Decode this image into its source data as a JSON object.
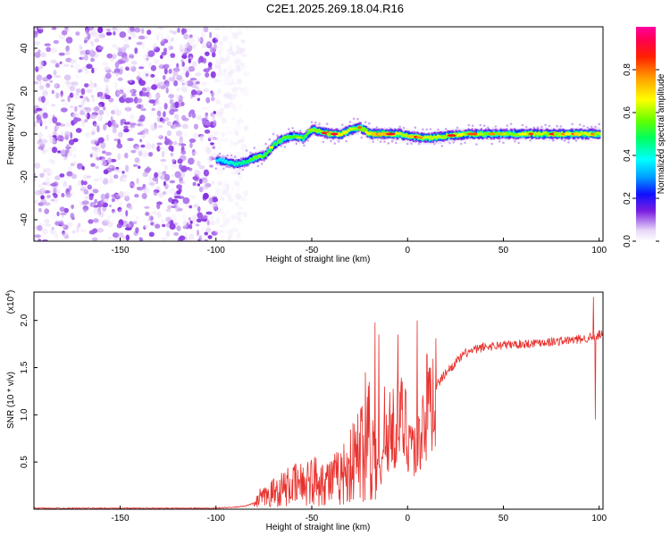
{
  "title": "C2E1.2025.269.18.04.R16",
  "colors": {
    "trace": "#e8322e",
    "noise": "#8a2be2",
    "axis": "#000000",
    "cmap": [
      "#ffffff",
      "#e8d8f8",
      "#7b1ee0",
      "#1010ff",
      "#00a0ff",
      "#00ffff",
      "#00ff60",
      "#60ff00",
      "#ffff00",
      "#ffa000",
      "#ff2000",
      "#ff0050",
      "#ff00a0"
    ]
  },
  "chart_data": [
    {
      "type": "heatmap",
      "name": "spectrogram",
      "xlabel": "Height of straight line (km)",
      "ylabel": "Frequency (Hz)",
      "xlim": [
        -195,
        102
      ],
      "ylim": [
        -50,
        50
      ],
      "xticks": [
        "-150",
        "-100",
        "-50",
        "0",
        "50",
        "100"
      ],
      "xtick_values": [
        -150,
        -100,
        -50,
        0,
        50,
        100
      ],
      "yticks": [
        "-40",
        "-20",
        "0",
        "20",
        "40"
      ],
      "ytick_values": [
        -40,
        -20,
        0,
        20,
        40
      ],
      "noise_region_x": [
        -195,
        -88
      ],
      "ridge": {
        "x": [
          -100,
          -95,
          -90,
          -85,
          -80,
          -75,
          -70,
          -65,
          -60,
          -55,
          -50,
          -45,
          -40,
          -35,
          -30,
          -25,
          -20,
          -15,
          -10,
          -5,
          0,
          10,
          20,
          30,
          40,
          50,
          60,
          70,
          80,
          90,
          100
        ],
        "freq": [
          -12,
          -13,
          -14,
          -13,
          -11,
          -10,
          -5,
          -2,
          -1,
          -2,
          2,
          1,
          0,
          0,
          2,
          3,
          0,
          0,
          0,
          0,
          -1,
          -2,
          -1,
          0,
          0,
          0,
          0,
          0,
          0,
          0,
          0
        ],
        "amplitude": [
          0.15,
          0.2,
          0.3,
          0.35,
          0.6,
          0.5,
          0.45,
          0.55,
          0.5,
          0.5,
          0.6,
          0.65,
          0.75,
          0.8,
          0.7,
          0.6,
          0.85,
          0.9,
          0.8,
          0.7,
          0.65,
          0.7,
          0.7,
          0.65,
          0.6,
          0.6,
          0.65,
          0.7,
          0.7,
          0.75,
          0.7
        ]
      },
      "colorbar": {
        "label": "Normalized spectral amplitude",
        "range": [
          0,
          1
        ],
        "ticks": [
          "0.0",
          "0.2",
          "0.4",
          "0.6",
          "0.8"
        ],
        "tick_values": [
          0.0,
          0.2,
          0.4,
          0.6,
          0.8
        ]
      }
    },
    {
      "type": "line",
      "name": "snr",
      "xlabel": "Height of straight line (km)",
      "ylabel": "SNR (10 * v/v)",
      "scale_label": "(x10",
      "scale_exp": "4",
      "scale_close": ")",
      "xlim": [
        -195,
        102
      ],
      "ylim": [
        0,
        2.3
      ],
      "xticks": [
        "-150",
        "-100",
        "-50",
        "0",
        "50",
        "100"
      ],
      "xtick_values": [
        -150,
        -100,
        -50,
        0,
        50,
        100
      ],
      "yticks": [
        "0.5",
        "1.0",
        "1.5",
        "2.0"
      ],
      "ytick_values": [
        0.5,
        1.0,
        1.5,
        2.0
      ],
      "envelope": {
        "x": [
          -195,
          -100,
          -85,
          -78,
          -75,
          -70,
          -65,
          -60,
          -55,
          -50,
          -45,
          -40,
          -35,
          -30,
          -25,
          -22,
          -20,
          -18,
          -16,
          -14,
          -12,
          -10,
          -8,
          -6,
          -4,
          -2,
          0,
          2,
          4,
          5,
          6,
          8,
          10,
          15,
          20,
          25,
          30,
          40,
          50,
          60,
          70,
          80,
          90,
          95,
          98,
          100,
          102
        ],
        "y": [
          0.01,
          0.01,
          0.03,
          0.08,
          0.12,
          0.18,
          0.22,
          0.25,
          0.27,
          0.3,
          0.32,
          0.3,
          0.35,
          0.45,
          0.6,
          0.75,
          0.85,
          0.6,
          0.45,
          0.3,
          0.75,
          0.8,
          0.85,
          0.9,
          0.95,
          0.9,
          0.85,
          0.75,
          0.6,
          0.55,
          0.7,
          0.95,
          1.05,
          1.3,
          1.45,
          1.55,
          1.65,
          1.72,
          1.74,
          1.75,
          1.77,
          1.78,
          1.8,
          1.82,
          1.8,
          1.85,
          1.85
        ]
      },
      "spikes": [
        {
          "x": -77,
          "y": 0.22
        },
        {
          "x": -52,
          "y": 0.5
        },
        {
          "x": -42,
          "y": 0.48
        },
        {
          "x": -31,
          "y": 0.55
        },
        {
          "x": -22,
          "y": 1.45
        },
        {
          "x": -20,
          "y": 1.35
        },
        {
          "x": -17,
          "y": 1.98
        },
        {
          "x": -15,
          "y": 1.85
        },
        {
          "x": -12,
          "y": 1.3
        },
        {
          "x": -5,
          "y": 1.85
        },
        {
          "x": 5,
          "y": 2.0
        },
        {
          "x": 10,
          "y": 1.65
        },
        {
          "x": 97,
          "y": 2.25
        },
        {
          "x": 98,
          "y": 0.95
        }
      ]
    }
  ]
}
